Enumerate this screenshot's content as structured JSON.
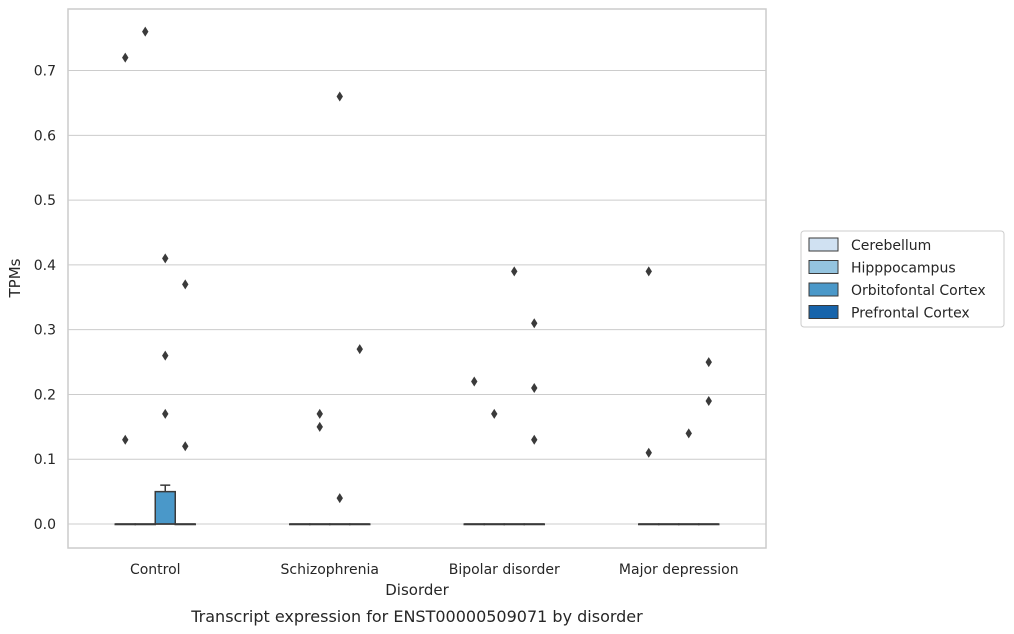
{
  "chart_data": {
    "type": "box",
    "xlabel": "Disorder",
    "ylabel": "TPMs",
    "caption": "Transcript expression for ENST00000509071 by disorder",
    "categories": [
      "Control",
      "Schizophrenia",
      "Bipolar disorder",
      "Major depression"
    ],
    "yticks": [
      "0.0",
      "0.1",
      "0.2",
      "0.3",
      "0.4",
      "0.5",
      "0.6",
      "0.7"
    ],
    "ylim": [
      -0.037,
      0.795
    ],
    "grid": true,
    "legend_position": "right",
    "series": [
      {
        "name": "Cerebellum",
        "color": "#d0e1f2"
      },
      {
        "name": "Hipppocampus",
        "color": "#94c4df"
      },
      {
        "name": "Orbitofontal Cortex",
        "color": "#4a98c9"
      },
      {
        "name": "Prefrontal Cortex",
        "color": "#1764ab"
      }
    ],
    "boxes": [
      {
        "category": "Control",
        "series": "Cerebellum",
        "q1": 0,
        "median": 0,
        "q3": 0,
        "whisker_low": 0,
        "whisker_high": 0,
        "outliers": [
          0.72,
          0.13
        ]
      },
      {
        "category": "Control",
        "series": "Hipppocampus",
        "q1": 0,
        "median": 0,
        "q3": 0,
        "whisker_low": 0,
        "whisker_high": 0,
        "outliers": [
          0.76
        ]
      },
      {
        "category": "Control",
        "series": "Orbitofontal Cortex",
        "q1": 0,
        "median": 0,
        "q3": 0.05,
        "whisker_low": 0,
        "whisker_high": 0.06,
        "outliers": [
          0.41,
          0.26,
          0.17
        ]
      },
      {
        "category": "Control",
        "series": "Prefrontal Cortex",
        "q1": 0,
        "median": 0,
        "q3": 0,
        "whisker_low": 0,
        "whisker_high": 0,
        "outliers": [
          0.37,
          0.12
        ]
      },
      {
        "category": "Schizophrenia",
        "series": "Cerebellum",
        "q1": 0,
        "median": 0,
        "q3": 0,
        "whisker_low": 0,
        "whisker_high": 0,
        "outliers": []
      },
      {
        "category": "Schizophrenia",
        "series": "Hipppocampus",
        "q1": 0,
        "median": 0,
        "q3": 0,
        "whisker_low": 0,
        "whisker_high": 0,
        "outliers": [
          0.17,
          0.15
        ]
      },
      {
        "category": "Schizophrenia",
        "series": "Orbitofontal Cortex",
        "q1": 0,
        "median": 0,
        "q3": 0,
        "whisker_low": 0,
        "whisker_high": 0,
        "outliers": [
          0.66,
          0.04
        ]
      },
      {
        "category": "Schizophrenia",
        "series": "Prefrontal Cortex",
        "q1": 0,
        "median": 0,
        "q3": 0,
        "whisker_low": 0,
        "whisker_high": 0,
        "outliers": [
          0.27
        ]
      },
      {
        "category": "Bipolar disorder",
        "series": "Cerebellum",
        "q1": 0,
        "median": 0,
        "q3": 0,
        "whisker_low": 0,
        "whisker_high": 0,
        "outliers": [
          0.22
        ]
      },
      {
        "category": "Bipolar disorder",
        "series": "Hipppocampus",
        "q1": 0,
        "median": 0,
        "q3": 0,
        "whisker_low": 0,
        "whisker_high": 0,
        "outliers": [
          0.17
        ]
      },
      {
        "category": "Bipolar disorder",
        "series": "Orbitofontal Cortex",
        "q1": 0,
        "median": 0,
        "q3": 0,
        "whisker_low": 0,
        "whisker_high": 0,
        "outliers": [
          0.39
        ]
      },
      {
        "category": "Bipolar disorder",
        "series": "Prefrontal Cortex",
        "q1": 0,
        "median": 0,
        "q3": 0,
        "whisker_low": 0,
        "whisker_high": 0,
        "outliers": [
          0.31,
          0.21,
          0.13
        ]
      },
      {
        "category": "Major depression",
        "series": "Cerebellum",
        "q1": 0,
        "median": 0,
        "q3": 0,
        "whisker_low": 0,
        "whisker_high": 0,
        "outliers": [
          0.39,
          0.11
        ]
      },
      {
        "category": "Major depression",
        "series": "Hipppocampus",
        "q1": 0,
        "median": 0,
        "q3": 0,
        "whisker_low": 0,
        "whisker_high": 0,
        "outliers": []
      },
      {
        "category": "Major depression",
        "series": "Orbitofontal Cortex",
        "q1": 0,
        "median": 0,
        "q3": 0,
        "whisker_low": 0,
        "whisker_high": 0,
        "outliers": [
          0.14
        ]
      },
      {
        "category": "Major depression",
        "series": "Prefrontal Cortex",
        "q1": 0,
        "median": 0,
        "q3": 0,
        "whisker_low": 0,
        "whisker_high": 0,
        "outliers": [
          0.25,
          0.19
        ]
      }
    ]
  }
}
